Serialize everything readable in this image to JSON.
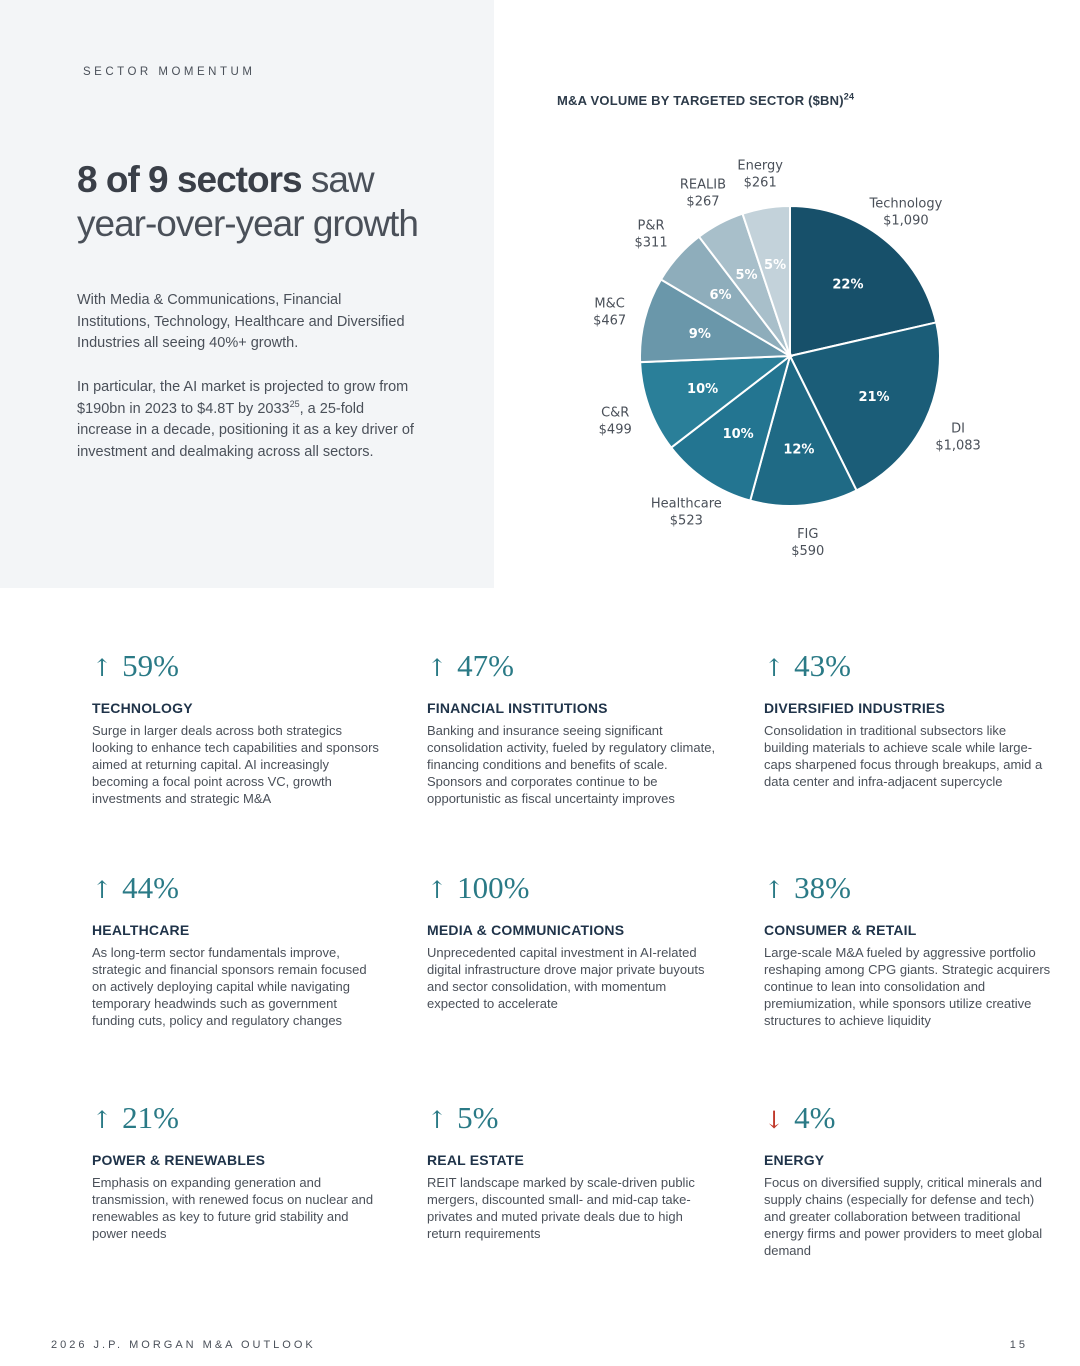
{
  "eyebrow": "SECTOR MOMENTUM",
  "headline": {
    "strong": "8 of 9 sectors",
    "rest_line1": " saw",
    "line2": "year-over-year growth"
  },
  "intro": {
    "p1": "With Media & Communications, Financial Institutions, Technology, Healthcare and Diversified Industries all seeing 40%+ growth.",
    "p2_before": "In particular, the AI market is projected to grow from $190bn in 2023 to $4.8T by 2033",
    "p2_sup": "25",
    "p2_after": ", a 25-fold increase in a decade, positioning it as a key driver of investment and dealmaking across all sectors."
  },
  "chart_title": {
    "text": "M&A VOLUME BY TARGETED SECTOR ($BN)",
    "sup": "24"
  },
  "chart_data": {
    "type": "pie",
    "title": "M&A VOLUME BY TARGETED SECTOR ($BN)",
    "unit": "$BN",
    "slices": [
      {
        "name": "Technology",
        "amount": "$1,090",
        "value": 1090,
        "pct": "22%",
        "color": "#17506a"
      },
      {
        "name": "DI",
        "amount": "$1,083",
        "value": 1083,
        "pct": "21%",
        "color": "#1b5d78"
      },
      {
        "name": "FIG",
        "amount": "$590",
        "value": 590,
        "pct": "12%",
        "color": "#1f6a85"
      },
      {
        "name": "Healthcare",
        "amount": "$523",
        "value": 523,
        "pct": "10%",
        "color": "#237591"
      },
      {
        "name": "C&R",
        "amount": "$499",
        "value": 499,
        "pct": "10%",
        "color": "#2a7f99"
      },
      {
        "name": "M&C",
        "amount": "$467",
        "value": 467,
        "pct": "9%",
        "color": "#6a97aa"
      },
      {
        "name": "P&R",
        "amount": "$311",
        "value": 311,
        "pct": "6%",
        "color": "#8eadbb"
      },
      {
        "name": "REALIB",
        "amount": "$267",
        "value": 267,
        "pct": "5%",
        "color": "#a8bfca"
      },
      {
        "name": "Energy",
        "amount": "$261",
        "value": 261,
        "pct": "5%",
        "color": "#c3d2da"
      }
    ]
  },
  "sectors": [
    {
      "direction": "up",
      "arrow": "↑",
      "value": "59%",
      "title": "TECHNOLOGY",
      "body": "Surge in larger deals across both strategics looking to enhance tech capabilities and sponsors aimed at returning capital. AI increasingly becoming a focal point across VC, growth investments and strategic M&A"
    },
    {
      "direction": "up",
      "arrow": "↑",
      "value": "47%",
      "title": "FINANCIAL INSTITUTIONS",
      "body": "Banking and insurance seeing significant consolidation activity, fueled by regulatory climate, financing conditions and benefits of scale. Sponsors and corporates continue to be opportunistic as fiscal uncertainty improves"
    },
    {
      "direction": "up",
      "arrow": "↑",
      "value": "43%",
      "title": "DIVERSIFIED INDUSTRIES",
      "body": "Consolidation in traditional subsectors like building materials to achieve scale while large-caps sharpened focus through breakups, amid a data center and infra-adjacent supercycle"
    },
    {
      "direction": "up",
      "arrow": "↑",
      "value": "44%",
      "title": "HEALTHCARE",
      "body": "As long-term sector fundamentals improve, strategic and financial sponsors remain focused on actively deploying capital while navigating temporary headwinds such as government funding cuts, policy and regulatory changes"
    },
    {
      "direction": "up",
      "arrow": "↑",
      "value": "100%",
      "title": "MEDIA & COMMUNICATIONS",
      "body": "Unprecedented capital investment in AI-related digital infrastructure drove major private buyouts and sector consolidation, with momentum expected to accelerate"
    },
    {
      "direction": "up",
      "arrow": "↑",
      "value": "38%",
      "title": "CONSUMER & RETAIL",
      "body": "Large-scale M&A fueled by aggressive portfolio reshaping among CPG giants. Strategic acquirers continue to lean into consolidation and premiumization, while sponsors utilize creative structures to achieve liquidity"
    },
    {
      "direction": "up",
      "arrow": "↑",
      "value": "21%",
      "title": "POWER & RENEWABLES",
      "body": "Emphasis on expanding generation and transmission, with renewed focus on nuclear and renewables as key to future grid stability and power needs"
    },
    {
      "direction": "up",
      "arrow": "↑",
      "value": "5%",
      "title": "REAL ESTATE",
      "body": "REIT landscape marked by scale-driven public mergers, discounted small- and mid-cap take-privates and muted private deals due to high return requirements"
    },
    {
      "direction": "down",
      "arrow": "↓",
      "value": "4%",
      "title": "ENERGY",
      "body": "Focus on diversified supply, critical minerals and supply chains (especially for defense and tech) and greater collaboration between traditional energy firms and power providers to meet global demand"
    }
  ],
  "footer": {
    "text": "2026 J.P. MORGAN M&A OUTLOOK",
    "page": "15"
  }
}
